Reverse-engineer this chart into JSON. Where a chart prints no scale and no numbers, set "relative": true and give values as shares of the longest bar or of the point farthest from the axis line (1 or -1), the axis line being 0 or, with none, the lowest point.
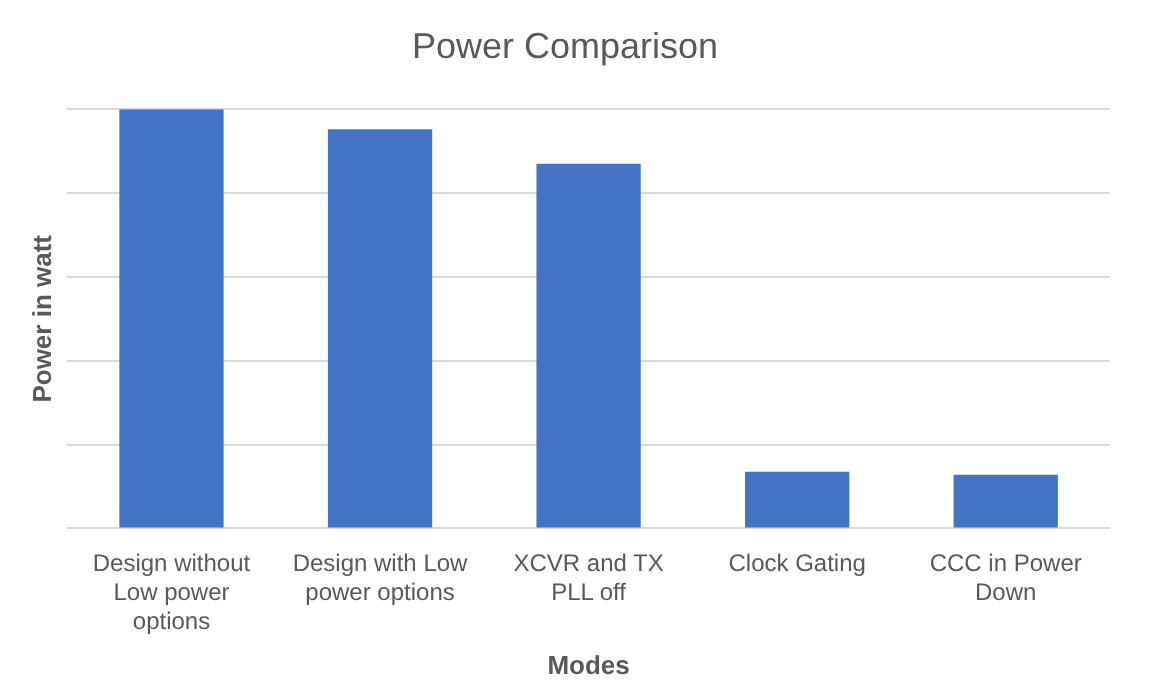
{
  "chart_data": {
    "type": "bar",
    "title": "Power Comparison",
    "xlabel": "Modes",
    "ylabel": "Power in watt",
    "categories": [
      "Design without Low power options",
      "Design with Low power options",
      "XCVR and TX PLL off",
      "Clock Gating",
      "CCC in Power Down"
    ],
    "values": [
      1,
      0.952,
      0.87,
      0.135,
      0.128
    ],
    "color": "#4472c4",
    "relative": true,
    "grid": true
  }
}
